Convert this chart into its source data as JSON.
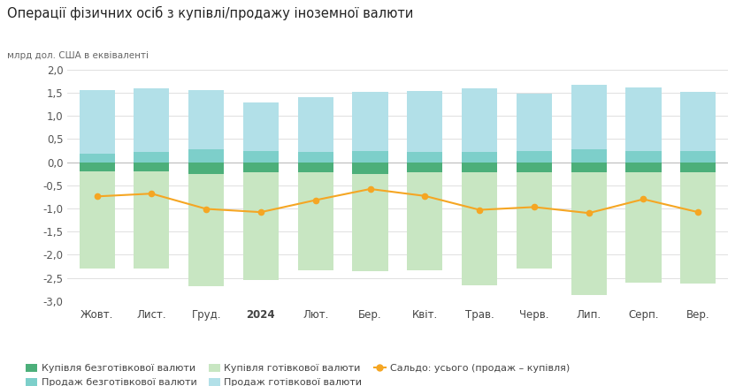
{
  "title": "Операції фізичних осіб з купівлі/продажу іноземної валюти",
  "ylabel": "млрд дол. США в еквіваленті",
  "categories": [
    "Жовт.",
    "Лист.",
    "Груд.",
    "2024",
    "Лют.",
    "Бер.",
    "Квіт.",
    "Трав.",
    "Черв.",
    "Лип.",
    "Серп.",
    "Вер."
  ],
  "cat_bold": [
    3
  ],
  "ylim": [
    -3.0,
    2.0
  ],
  "yticks": [
    -3.0,
    -2.5,
    -2.0,
    -1.5,
    -1.0,
    -0.5,
    0.0,
    0.5,
    1.0,
    1.5,
    2.0
  ],
  "buy_cashless": [
    -0.2,
    -0.2,
    -0.25,
    -0.22,
    -0.22,
    -0.25,
    -0.22,
    -0.22,
    -0.22,
    -0.22,
    -0.22,
    -0.22
  ],
  "sell_cashless": [
    0.18,
    0.22,
    0.28,
    0.24,
    0.22,
    0.24,
    0.22,
    0.22,
    0.24,
    0.28,
    0.24,
    0.24
  ],
  "buy_cash": [
    -2.1,
    -2.1,
    -2.42,
    -2.32,
    -2.12,
    -2.1,
    -2.12,
    -2.43,
    -2.08,
    -2.65,
    -2.38,
    -2.4
  ],
  "sell_cash": [
    1.38,
    1.38,
    1.28,
    1.04,
    1.18,
    1.28,
    1.32,
    1.38,
    1.24,
    1.38,
    1.38,
    1.28
  ],
  "saldo": [
    -0.74,
    -0.68,
    -1.01,
    -1.08,
    -0.82,
    -0.58,
    -0.73,
    -1.03,
    -0.97,
    -1.1,
    -0.8,
    -1.08
  ],
  "color_buy_cashless": "#4caf7a",
  "color_sell_cashless": "#7dcfca",
  "color_buy_cash": "#c8e6c2",
  "color_sell_cash": "#b2e0e8",
  "color_saldo": "#f5a623",
  "legend_labels": [
    "Купівля безготівкової валюти",
    "Продаж безготівкової валюти",
    "Купівля готівкової валюти",
    "Продаж готівкової валюти",
    "Сальдо: усього (продаж – купівля)"
  ],
  "background_color": "#ffffff",
  "grid_color": "#e0e0e0"
}
